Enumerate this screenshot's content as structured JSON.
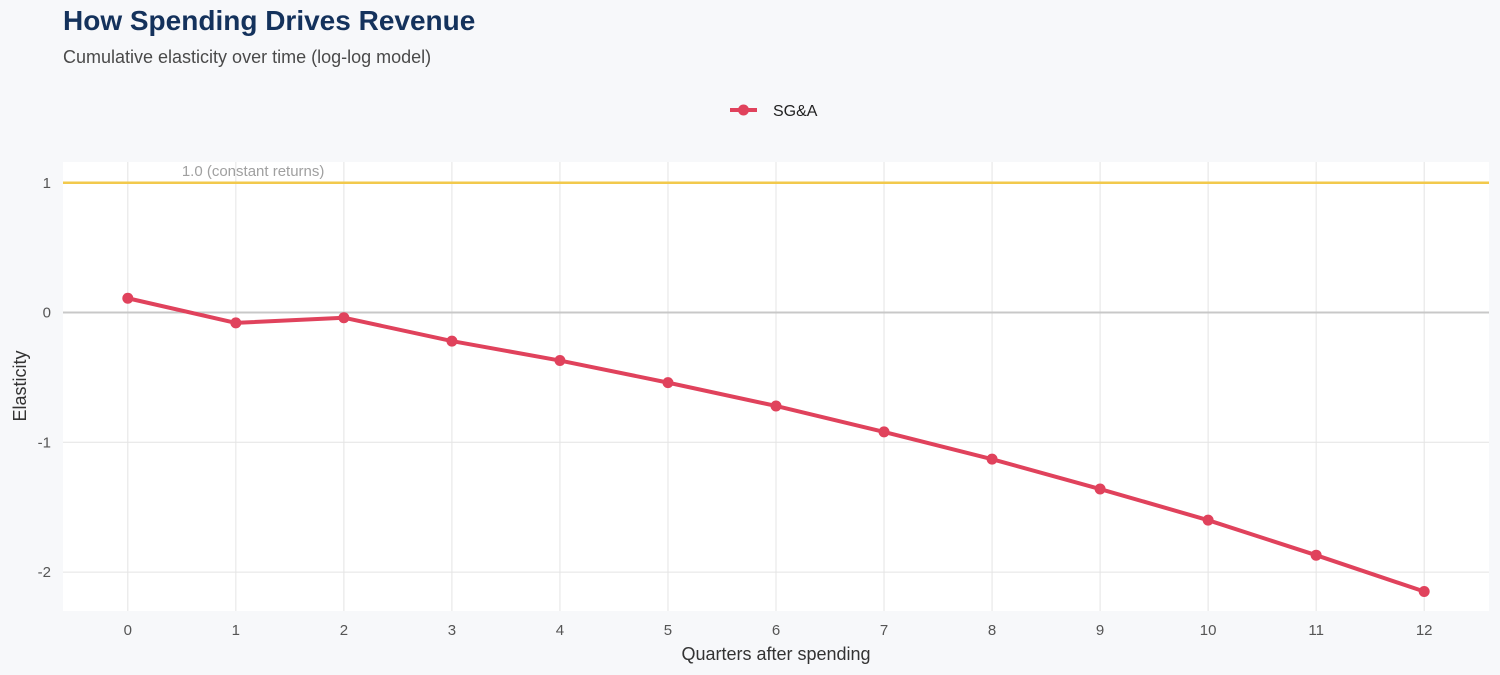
{
  "chart_data": {
    "type": "line",
    "title": "How Spending Drives Revenue",
    "subtitle": "Cumulative elasticity over time (log-log model)",
    "xlabel": "Quarters after spending",
    "ylabel": "Elasticity",
    "x": [
      0,
      1,
      2,
      3,
      4,
      5,
      6,
      7,
      8,
      9,
      10,
      11,
      12
    ],
    "xticks": [
      "0",
      "1",
      "2",
      "3",
      "4",
      "5",
      "6",
      "7",
      "8",
      "9",
      "10",
      "11",
      "12"
    ],
    "yticks": [
      1,
      0,
      -1,
      -2
    ],
    "ytick_labels": [
      "1",
      "0",
      "-1",
      "-2"
    ],
    "xlim": [
      -0.6,
      12.6
    ],
    "ylim": [
      -2.3,
      1.16
    ],
    "grid": true,
    "legend_position": "top-center",
    "series": [
      {
        "name": "SG&A",
        "color": "#e0425c",
        "values": [
          0.11,
          -0.08,
          -0.04,
          -0.22,
          -0.37,
          -0.54,
          -0.72,
          -0.92,
          -1.13,
          -1.36,
          -1.6,
          -1.87,
          -2.15
        ]
      }
    ],
    "reference_lines": [
      {
        "y": 1,
        "label": "1.0 (constant returns)",
        "color": "#f2c94c"
      },
      {
        "y": 0,
        "color": "#c8c8c8"
      }
    ]
  }
}
